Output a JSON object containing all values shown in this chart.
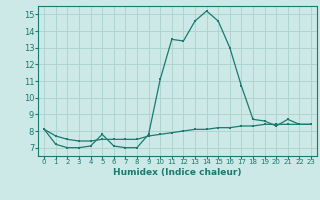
{
  "xlabel": "Humidex (Indice chaleur)",
  "x": [
    0,
    1,
    2,
    3,
    4,
    5,
    6,
    7,
    8,
    9,
    10,
    11,
    12,
    13,
    14,
    15,
    16,
    17,
    18,
    19,
    20,
    21,
    22,
    23
  ],
  "y_humidex": [
    8.1,
    7.2,
    7.0,
    7.0,
    7.1,
    7.8,
    7.1,
    7.0,
    7.0,
    7.8,
    11.1,
    13.5,
    13.4,
    14.6,
    15.2,
    14.6,
    13.0,
    10.7,
    8.7,
    8.6,
    8.3,
    8.7,
    8.4,
    8.4
  ],
  "y_base": [
    8.1,
    7.7,
    7.5,
    7.4,
    7.4,
    7.5,
    7.5,
    7.5,
    7.5,
    7.7,
    7.8,
    7.9,
    8.0,
    8.1,
    8.1,
    8.2,
    8.2,
    8.3,
    8.3,
    8.4,
    8.4,
    8.4,
    8.4,
    8.4
  ],
  "line_color": "#1a7a6e",
  "bg_color": "#cce9e7",
  "grid_color": "#b0d4d0",
  "ylim": [
    6.5,
    15.5
  ],
  "yticks": [
    7,
    8,
    9,
    10,
    11,
    12,
    13,
    14,
    15
  ],
  "xlim": [
    -0.5,
    23.5
  ]
}
